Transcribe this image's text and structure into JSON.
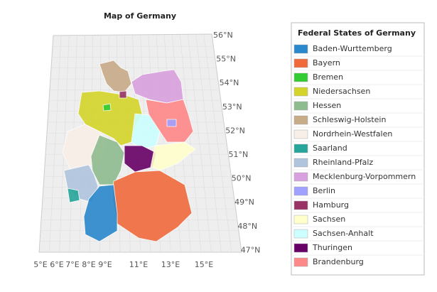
{
  "title": "Map of Germany",
  "legend": {
    "title": "Federal States of Germany",
    "items": [
      {
        "name": "Baden-Wurttemberg",
        "color": "#2a88cc"
      },
      {
        "name": "Bayern",
        "color": "#f06a3c"
      },
      {
        "name": "Bremen",
        "color": "#33cc33"
      },
      {
        "name": "Niedersachsen",
        "color": "#d4d42a"
      },
      {
        "name": "Hessen",
        "color": "#8fbc8f"
      },
      {
        "name": "Schleswig-Holstein",
        "color": "#c8ab87"
      },
      {
        "name": "Nordrhein-Westfalen",
        "color": "#f8efe8"
      },
      {
        "name": "Saarland",
        "color": "#26a69a"
      },
      {
        "name": "Rheinland-Pfalz",
        "color": "#b0c4de"
      },
      {
        "name": "Mecklenburg-Vorpommern",
        "color": "#d8a0de"
      },
      {
        "name": "Berlin",
        "color": "#a0a0ff"
      },
      {
        "name": "Hamburg",
        "color": "#993366"
      },
      {
        "name": "Sachsen",
        "color": "#ffffcc"
      },
      {
        "name": "Sachsen-Anhalt",
        "color": "#ccffff"
      },
      {
        "name": "Thuringen",
        "color": "#660066"
      },
      {
        "name": "Brandenburg",
        "color": "#ff8888"
      }
    ]
  },
  "latitude_labels": [
    "56°N",
    "55°N",
    "54°N",
    "53°N",
    "52°N",
    "51°N",
    "50°N",
    "49°N",
    "48°N",
    "47°N"
  ],
  "longitude_labels": [
    "5°E",
    "6°E",
    "7°E",
    "8°E",
    "9°E",
    "11°E",
    "13°E",
    "15°E"
  ]
}
